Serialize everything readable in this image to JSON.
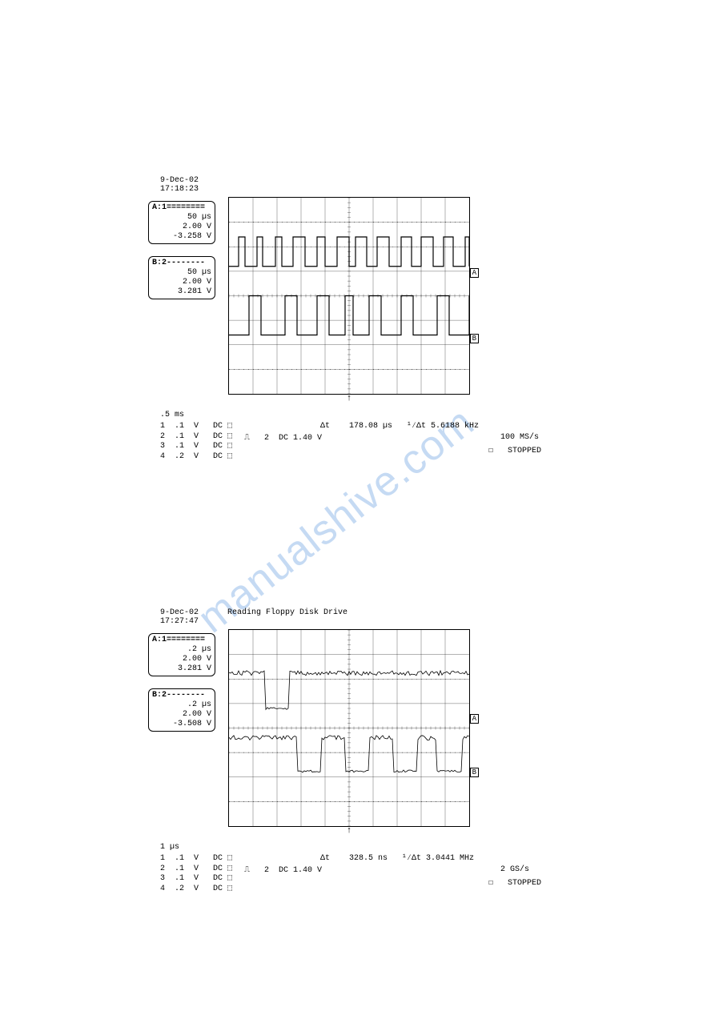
{
  "watermark_text": "manualshive.com",
  "panel1": {
    "date": "9-Dec-02",
    "time": "17:18:23",
    "cursorA": {
      "header": "A:1========",
      "line1": "50 µs",
      "line2": "2.00 V",
      "line3": "-3.258 V"
    },
    "cursorB": {
      "header": "B:2--------",
      "line1": "50 µs",
      "line2": "2.00 V",
      "line3": "3.281 V"
    },
    "timebase": ".5 ms",
    "ch1": "1  .1  V   DC ⬚",
    "ch2": "2  .1  V   DC ⬚",
    "ch3": "3  .1  V   DC ⬚",
    "ch4": "4  .2  V   DC ⬚",
    "dt": "Δt    178.08 µs   ¹⁄Δt 5.6188 kHz",
    "trig": "⎍   2  DC 1.40 V",
    "rate": "100 MS/s",
    "stopped": "☐   STOPPED",
    "grid": {
      "cols": 10,
      "rows": 8,
      "dot_rows": [
        1,
        2,
        7
      ],
      "waveform_type": "digital-pulses",
      "ch_A_row": 2.8,
      "ch_B_row": 5.5
    }
  },
  "panel2": {
    "date": "9-Dec-02",
    "time": "17:27:47",
    "title": "Reading Floppy Disk Drive",
    "cursorA": {
      "header": "A:1========",
      "line1": ".2 µs",
      "line2": "2.00 V",
      "line3": "3.281 V"
    },
    "cursorB": {
      "header": "B:2--------",
      "line1": ".2 µs",
      "line2": "2.00 V",
      "line3": "-3.508 V"
    },
    "timebase": "1 µs",
    "ch1": "1  .1  V   DC ⬚",
    "ch2": "2  .1  V   DC ⬚",
    "ch3": "3  .1  V   DC ⬚",
    "ch4": "4  .2  V   DC ⬚",
    "dt": "Δt    328.5 ns   ¹⁄Δt 3.0441 MHz",
    "trig": "⎍   2  DC 1.40 V",
    "rate": "2 GS/s",
    "stopped": "☐   STOPPED",
    "grid": {
      "cols": 10,
      "rows": 8,
      "dot_rows": [
        2,
        5,
        7
      ],
      "waveform_type": "analog-noisy",
      "ch_A_row": 3.5,
      "ch_B_row": 5.5
    }
  },
  "style": {
    "bg_color": "#ffffff",
    "line_color": "#000000",
    "dot_color": "#000000",
    "font_family": "Courier New",
    "watermark_color": "rgba(90,150,220,0.35)"
  }
}
